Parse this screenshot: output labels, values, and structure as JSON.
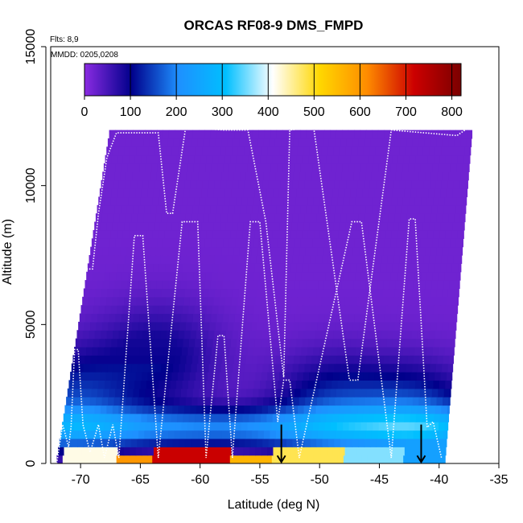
{
  "chart_data": {
    "type": "heatmap",
    "title": "ORCAS RF08-9 DMS_FMPD",
    "annotations": [
      "Flts: 8,9",
      "MMDD: 0205,0208"
    ],
    "xlabel": "Latitude (deg N)",
    "ylabel": "Altitude (m)",
    "xlim": [
      -72.5,
      -35
    ],
    "ylim": [
      0,
      15000
    ],
    "x_ticks": [
      -70,
      -65,
      -60,
      -55,
      -50,
      -45,
      -40,
      -35
    ],
    "y_ticks": [
      0,
      5000,
      10000,
      15000
    ],
    "colorbar": {
      "range": [
        0,
        820
      ],
      "ticks": [
        0,
        100,
        200,
        300,
        400,
        500,
        600,
        700,
        800
      ],
      "colors": [
        "#8a2be2",
        "#00008b",
        "#1e90ff",
        "#00bfff",
        "#ffffff",
        "#ffd700",
        "#ff8c00",
        "#cc0000",
        "#7b0000"
      ]
    },
    "field_top_altitude": 12000,
    "surface_bands": [
      {
        "lat_start": -71.5,
        "lat_end": -67,
        "alt_top": 600,
        "value": 420
      },
      {
        "lat_start": -67,
        "lat_end": -64,
        "alt_top": 300,
        "value": 600
      },
      {
        "lat_start": -64,
        "lat_end": -57.5,
        "alt_top": 500,
        "value": 720
      },
      {
        "lat_start": -57.5,
        "lat_end": -54,
        "alt_top": 300,
        "value": 560
      },
      {
        "lat_start": -54,
        "lat_end": -48,
        "alt_top": 600,
        "value": 480
      },
      {
        "lat_start": -48,
        "lat_end": -43,
        "alt_top": 700,
        "value": 360
      },
      {
        "lat_start": -43,
        "lat_end": -39.5,
        "alt_top": 900,
        "value": 240
      }
    ],
    "high_concentration_plumes": [
      {
        "lat": -63.5,
        "alt": 3800,
        "value": 80
      },
      {
        "lat": -70.5,
        "alt": 2200,
        "value": 120
      },
      {
        "lat": -49,
        "alt": 2000,
        "value": 110
      },
      {
        "lat": -42,
        "alt": 1600,
        "value": 140
      }
    ],
    "flight_track": [
      [
        -72,
        0
      ],
      [
        -71.5,
        1400
      ],
      [
        -71,
        600
      ],
      [
        -70.8,
        1300
      ],
      [
        -70.5,
        4100
      ],
      [
        -70.2,
        4100
      ],
      [
        -69.8,
        1400
      ],
      [
        -69.2,
        400
      ],
      [
        -68.5,
        1400
      ],
      [
        -68,
        200
      ],
      [
        -67.3,
        1400
      ],
      [
        -66.8,
        200
      ],
      [
        -65.5,
        8200
      ],
      [
        -64.8,
        8200
      ],
      [
        -63.5,
        200
      ],
      [
        -61.5,
        8700
      ],
      [
        -60.2,
        8700
      ],
      [
        -59.5,
        200
      ],
      [
        -58.5,
        4600
      ],
      [
        -58,
        4600
      ],
      [
        -57.3,
        200
      ],
      [
        -55.8,
        8700
      ],
      [
        -55,
        8700
      ],
      [
        -53.5,
        1500
      ],
      [
        -53,
        3000
      ],
      [
        -52.5,
        3000
      ],
      [
        -51.7,
        200
      ],
      [
        -47.3,
        8700
      ],
      [
        -46.5,
        8700
      ],
      [
        -44,
        200
      ],
      [
        -42.5,
        8800
      ],
      [
        -42,
        8800
      ],
      [
        -41,
        1300
      ],
      [
        -40.5,
        1500
      ],
      [
        -39.8,
        200
      ]
    ],
    "flight_track_upper": [
      [
        -69.5,
        7000
      ],
      [
        -69,
        7000
      ],
      [
        -68.5,
        9000
      ],
      [
        -67.8,
        11000
      ],
      [
        -67,
        11900
      ],
      [
        -63.5,
        11900
      ],
      [
        -62.8,
        9000
      ],
      [
        -62.3,
        9000
      ],
      [
        -61.2,
        12100
      ],
      [
        -58,
        12000
      ],
      [
        -56,
        12000
      ],
      [
        -54.5,
        8700
      ],
      [
        -53,
        3100
      ],
      [
        -52.5,
        12000
      ],
      [
        -50.5,
        12100
      ],
      [
        -47.5,
        3000
      ],
      [
        -46.8,
        3000
      ],
      [
        -44,
        12000
      ],
      [
        -38.5,
        11800
      ],
      [
        -37.5,
        12100
      ]
    ],
    "markers": [
      {
        "lat": -53.2,
        "label": "arrow-down"
      },
      {
        "lat": -41.5,
        "label": "arrow-down"
      }
    ]
  }
}
